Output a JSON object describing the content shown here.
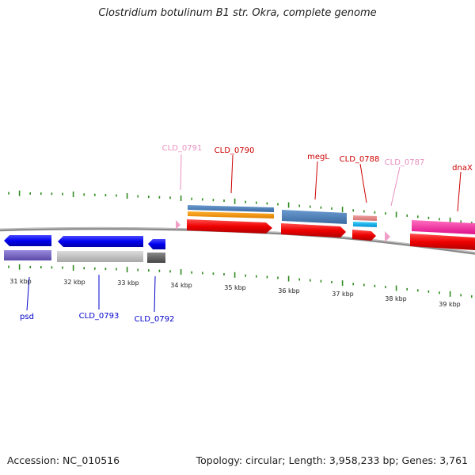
{
  "title": "Clostridium botulinum B1 str. Okra, complete genome",
  "footer": {
    "accession": "Accession: NC_010516",
    "summary": "Topology: circular; Length: 3,958,233 bp; Genes: 3,761"
  },
  "colors": {
    "backbone": "#8a8a8a",
    "tick": "#2e8b1e",
    "forward_label": "#cc0000",
    "forward_label_light": "#e890c0",
    "reverse_label": "#0000cc"
  },
  "ruler": [
    "31 kbp",
    "32 kbp",
    "33 kbp",
    "34 kbp",
    "35 kbp",
    "36 kbp",
    "37 kbp",
    "38 kbp",
    "39 kbp"
  ],
  "forward_labels": [
    "CLD_0791",
    "CLD_0790",
    "megL",
    "CLD_0788",
    "CLD_0787",
    "dnaX"
  ],
  "reverse_labels": [
    "psd",
    "CLD_0793",
    "CLD_0792"
  ]
}
